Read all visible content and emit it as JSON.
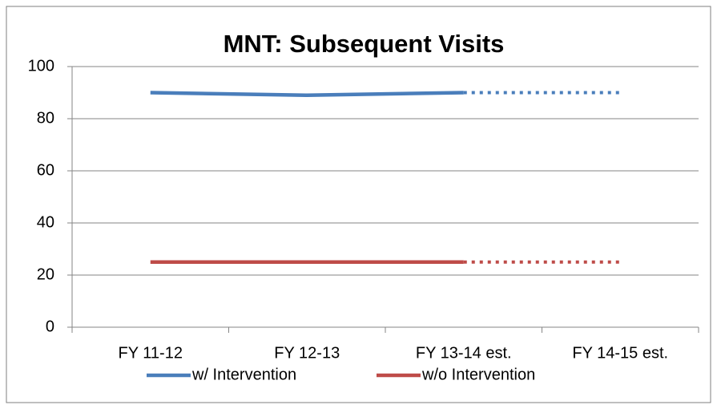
{
  "chart_data": {
    "type": "line",
    "title": "MNT: Subsequent Visits",
    "categories": [
      "FY 11-12",
      "FY 12-13",
      "FY 13-14 est.",
      "FY 14-15 est."
    ],
    "series": [
      {
        "name": "w/ Intervention",
        "color": "#4a7ebb",
        "values": [
          90,
          89,
          90,
          90
        ],
        "segment_styles": [
          "solid",
          "solid",
          "dotted"
        ]
      },
      {
        "name": "w/o Intervention",
        "color": "#be4b48",
        "values": [
          25,
          25,
          25,
          25
        ],
        "segment_styles": [
          "solid",
          "solid",
          "dotted"
        ]
      }
    ],
    "ylim": [
      0,
      100
    ],
    "yticks": [
      0,
      20,
      40,
      60,
      80,
      100
    ],
    "grid": true,
    "legend": "bottom"
  }
}
